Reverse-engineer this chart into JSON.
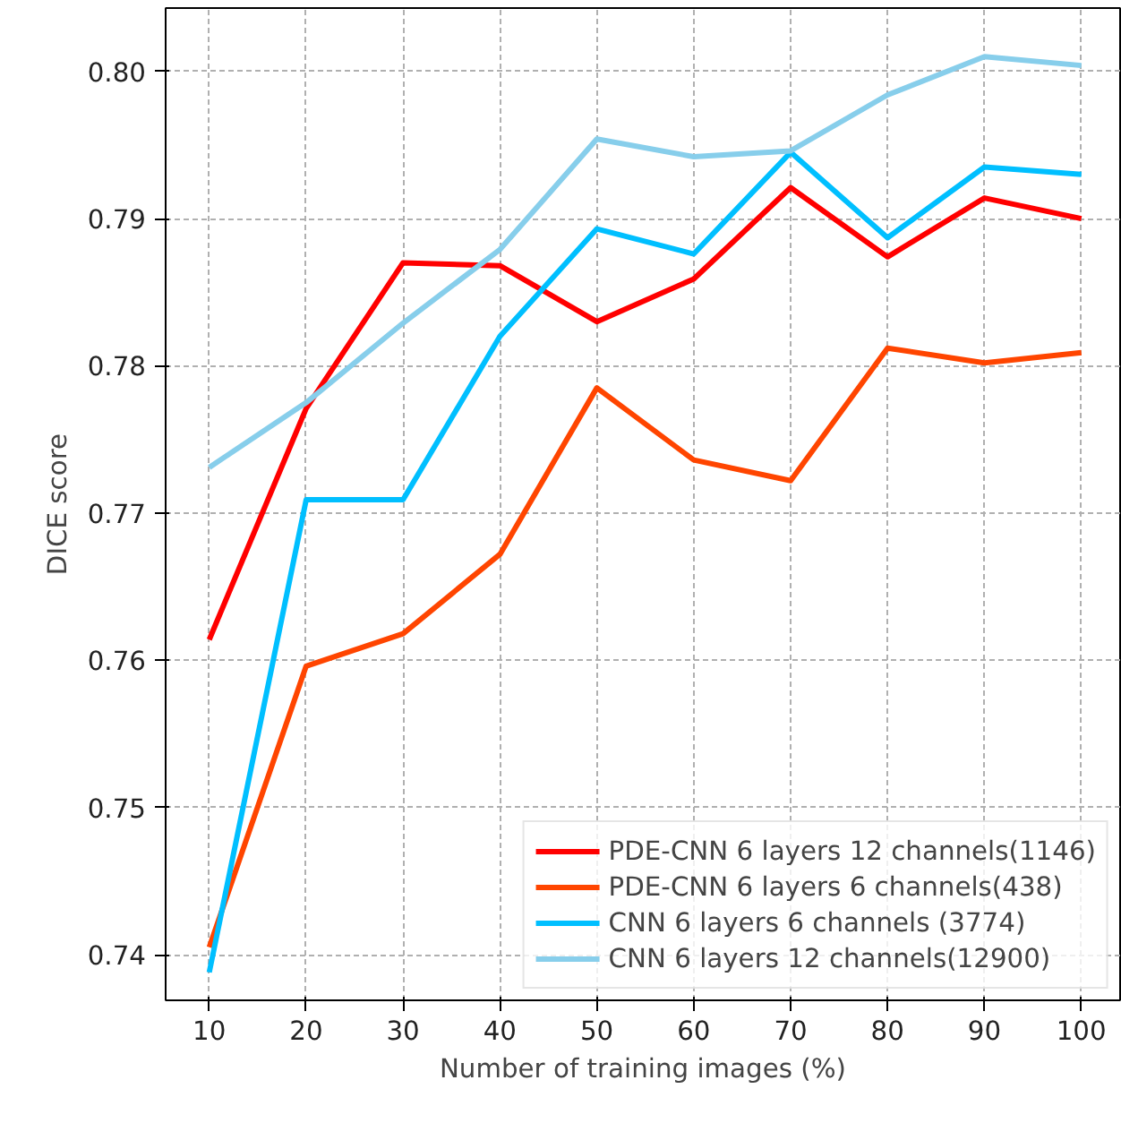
{
  "chart_data": {
    "type": "line",
    "xlabel": "Number of training images (%)",
    "ylabel": "DICE score",
    "x": [
      10,
      20,
      30,
      40,
      50,
      60,
      70,
      80,
      90,
      100
    ],
    "xlim": [
      5.5,
      104
    ],
    "xticks": [
      10,
      20,
      30,
      40,
      50,
      60,
      70,
      80,
      90,
      100
    ],
    "ylim": [
      0.7369,
      0.8043
    ],
    "yticks": [
      {
        "value": 0.74,
        "label": "0.74"
      },
      {
        "value": 0.75,
        "label": "0.75"
      },
      {
        "value": 0.76,
        "label": "0.76"
      },
      {
        "value": 0.77,
        "label": "0.77"
      },
      {
        "value": 0.78,
        "label": "0.78"
      },
      {
        "value": 0.79,
        "label": "0.79"
      },
      {
        "value": 0.8,
        "label": "0.80"
      }
    ],
    "grid": true,
    "legend": "bottom right",
    "marker": "none",
    "line_style": "solid",
    "series": [
      {
        "name": "PDE-CNN 6 layers 12 channels(1146)",
        "color": "#ff0000",
        "values": [
          0.7614,
          0.7771,
          0.787,
          0.7868,
          0.783,
          0.7859,
          0.7921,
          0.7874,
          0.7914,
          0.79
        ]
      },
      {
        "name": "PDE-CNN 6 layers 6 channels(438)",
        "color": "#ff4500",
        "values": [
          0.7405,
          0.7596,
          0.7618,
          0.7672,
          0.7785,
          0.7736,
          0.7722,
          0.7812,
          0.7802,
          0.7809
        ]
      },
      {
        "name": "CNN 6 layers 6 channels (3774)",
        "color": "#00bfff",
        "values": [
          0.7388,
          0.7709,
          0.7709,
          0.782,
          0.7893,
          0.7876,
          0.7945,
          0.7887,
          0.7935,
          0.793
        ]
      },
      {
        "name": "CNN 6 layers 12 channels(12900)",
        "color": "#87ceeb",
        "values": [
          0.7731,
          0.7775,
          0.7829,
          0.7879,
          0.7954,
          0.7942,
          0.7946,
          0.7984,
          0.801,
          0.8004
        ]
      }
    ]
  }
}
